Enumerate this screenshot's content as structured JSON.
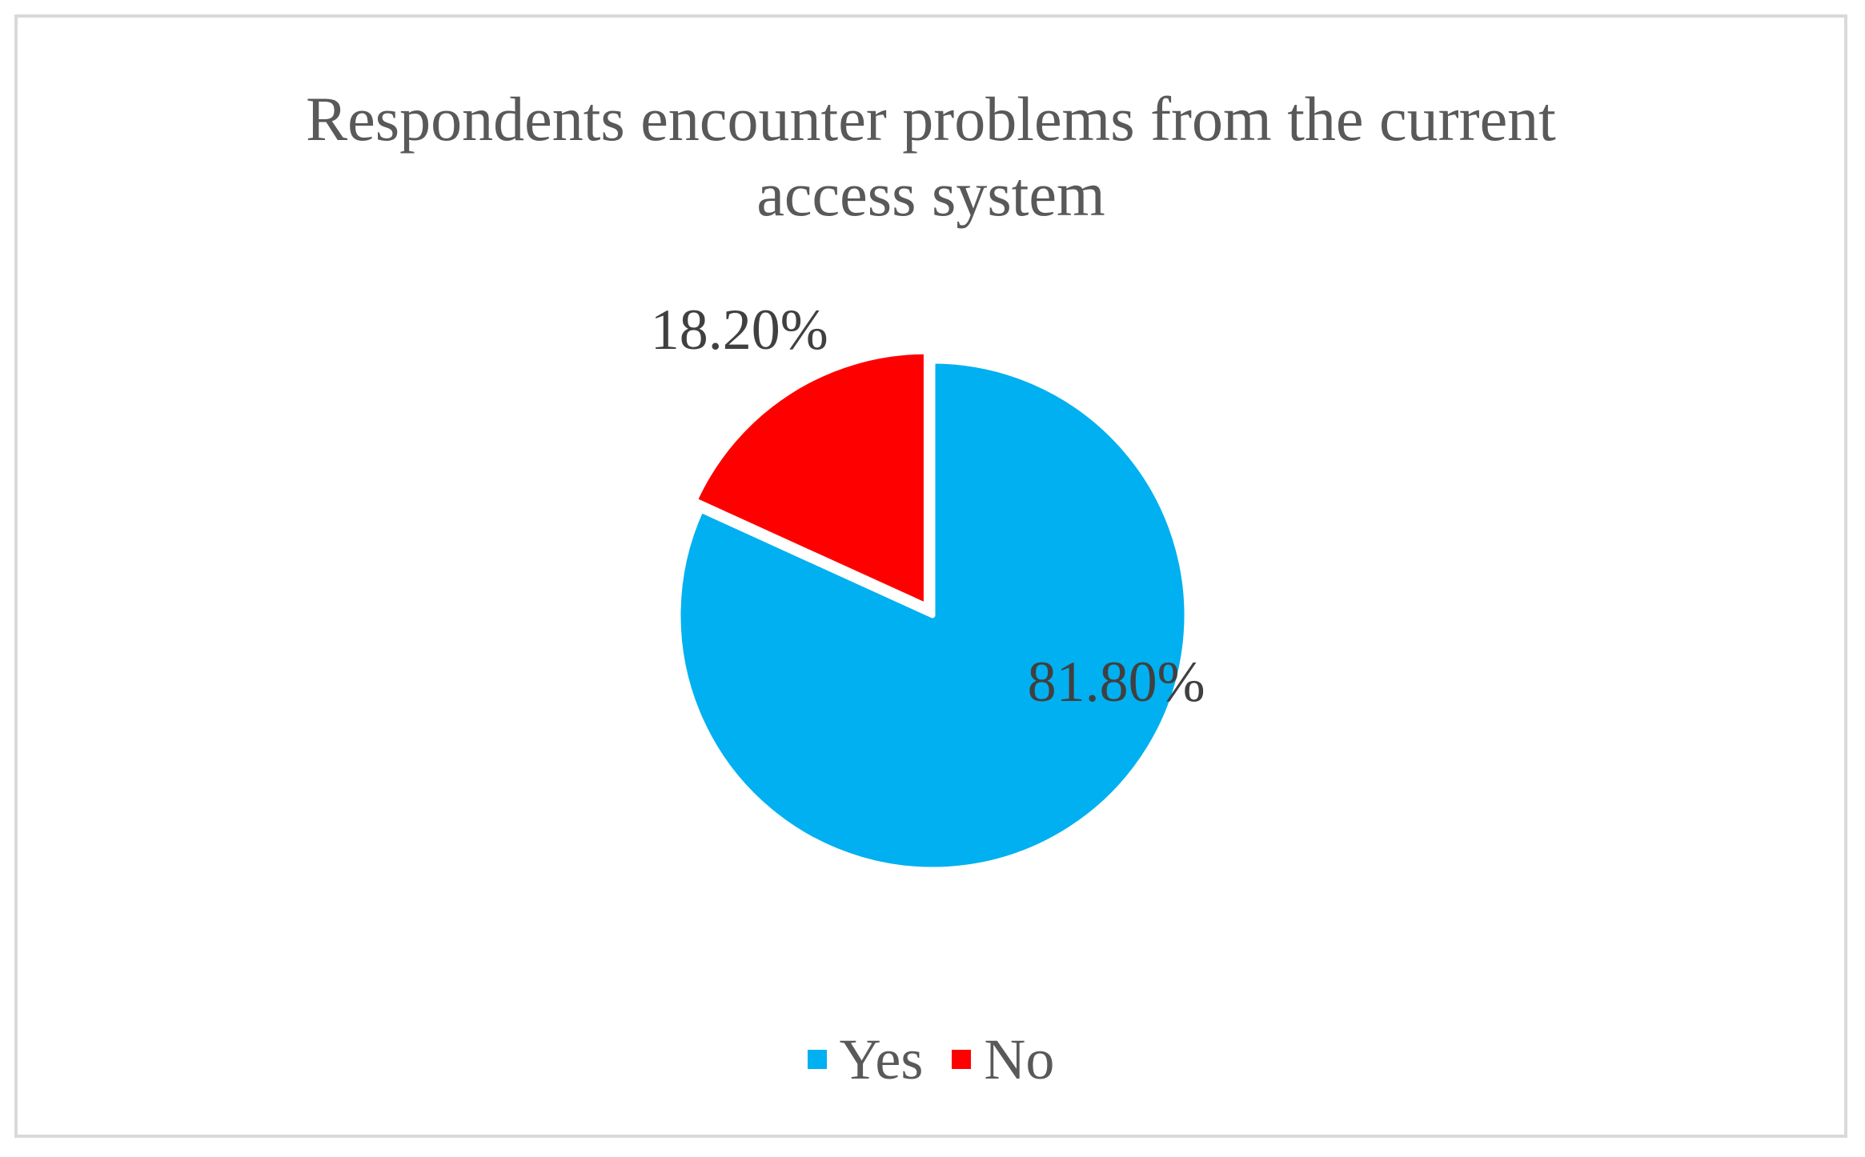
{
  "chart_data": {
    "type": "pie",
    "title": "Respondents encounter problems from the current access system",
    "categories": [
      "Yes",
      "No"
    ],
    "values": [
      81.8,
      18.2
    ],
    "data_labels": [
      "81.80%",
      "18.20%"
    ],
    "colors": [
      "#00B0F0",
      "#FF0000"
    ],
    "legend_position": "bottom",
    "start_angle": "12 o'clock, clockwise"
  }
}
